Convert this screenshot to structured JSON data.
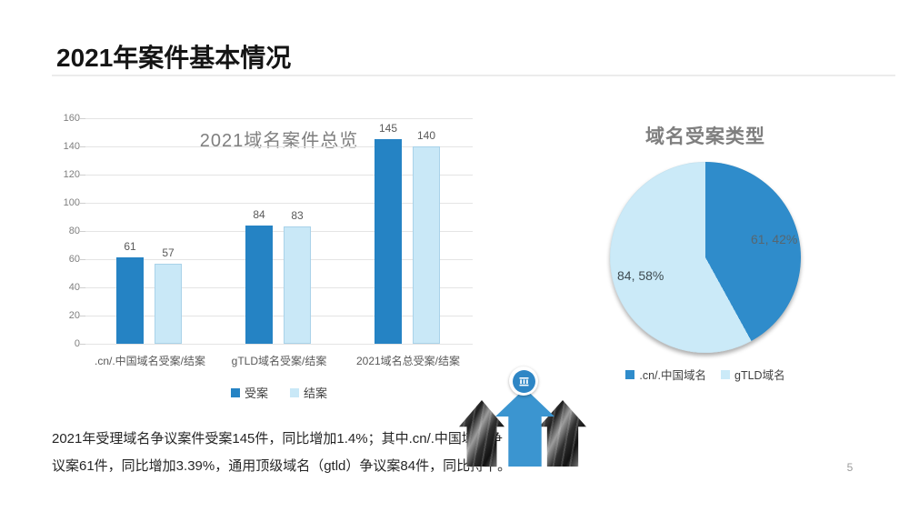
{
  "slide": {
    "title": "2021年案件基本情况",
    "page_number": "5"
  },
  "chart_data": [
    {
      "type": "bar",
      "title": "2021域名案件总览",
      "categories": [
        ".cn/.中国域名受案/结案",
        "gTLD域名受案/结案",
        "2021域名总受案/结案"
      ],
      "series": [
        {
          "name": "受案",
          "color": "#2583c4",
          "values": [
            61,
            84,
            145
          ]
        },
        {
          "name": "结案",
          "color": "#c9e8f7",
          "values": [
            57,
            83,
            140
          ]
        }
      ],
      "ylim": [
        0,
        160
      ],
      "yticks": [
        160,
        140,
        120,
        100,
        80,
        60,
        40,
        20,
        0
      ],
      "grid": true,
      "legend_position": "bottom"
    },
    {
      "type": "pie",
      "title": "域名受案类型",
      "slices": [
        {
          "label": ".cn/.中国域名",
          "value": 61,
          "pct": 42,
          "display": "61, 42%",
          "color": "#2f8ccb"
        },
        {
          "label": "gTLD域名",
          "value": 84,
          "pct": 58,
          "display": "84, 58%",
          "color": "#cbeaf8"
        }
      ],
      "legend_position": "bottom"
    }
  ],
  "summary": {
    "lines": [
      "2021年受理域名争议案件受案145件，同比增加1.4%；其中.cn/.中国域名争",
      "议案61件，同比增加3.39%，通用顶级域名（gtld）争议案84件，同比持平。"
    ]
  },
  "graphic": {
    "badge_icon": "building-icon",
    "arrow_blue": "#3b95d0"
  }
}
